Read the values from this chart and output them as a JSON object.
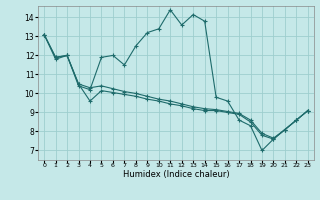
{
  "bg_color": "#c5e8e8",
  "grid_color": "#9ecece",
  "line_color": "#1e6b6b",
  "xlabel": "Humidex (Indice chaleur)",
  "xlim": [
    -0.5,
    23.5
  ],
  "ylim": [
    6.5,
    14.6
  ],
  "xticks": [
    0,
    1,
    2,
    3,
    4,
    5,
    6,
    7,
    8,
    9,
    10,
    11,
    12,
    13,
    14,
    15,
    16,
    17,
    18,
    19,
    20,
    21,
    22,
    23
  ],
  "yticks": [
    7,
    8,
    9,
    10,
    11,
    12,
    13,
    14
  ],
  "y_main": [
    13.1,
    11.8,
    12.0,
    10.4,
    10.2,
    11.9,
    12.0,
    11.5,
    12.5,
    13.2,
    13.4,
    14.4,
    13.6,
    14.15,
    13.8,
    9.8,
    9.6,
    8.6,
    8.3,
    7.0,
    7.6,
    8.1,
    8.6,
    9.1
  ],
  "y_line2": [
    13.1,
    11.9,
    12.0,
    10.5,
    10.3,
    10.4,
    10.25,
    10.1,
    10.0,
    9.85,
    9.7,
    9.6,
    9.45,
    9.3,
    9.2,
    9.15,
    9.05,
    8.95,
    8.6,
    7.9,
    7.65,
    8.1,
    8.6,
    9.1
  ],
  "y_line3": [
    13.1,
    11.9,
    12.0,
    10.5,
    9.6,
    10.15,
    10.05,
    9.95,
    9.85,
    9.7,
    9.6,
    9.45,
    9.35,
    9.2,
    9.1,
    9.1,
    9.0,
    8.9,
    8.5,
    7.8,
    7.6,
    8.1,
    8.6,
    9.1
  ]
}
